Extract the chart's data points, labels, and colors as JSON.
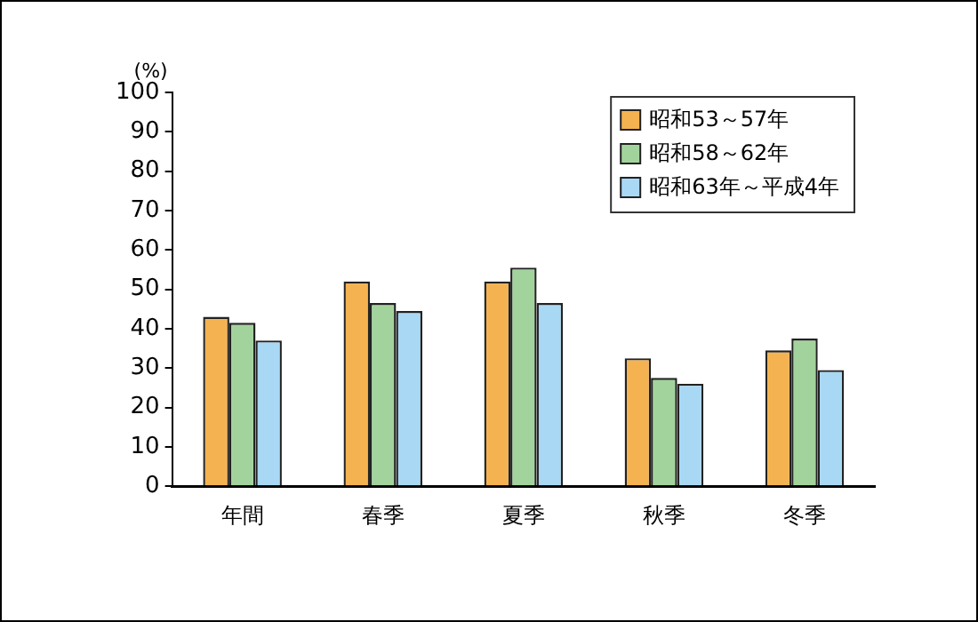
{
  "chart_data": {
    "type": "bar",
    "ylabel": "(%)",
    "categories": [
      "年間",
      "春季",
      "夏季",
      "秋季",
      "冬季"
    ],
    "series": [
      {
        "name": "昭和53～57年",
        "color": "#f4b350",
        "values": [
          43,
          52,
          52,
          32.5,
          34.5
        ]
      },
      {
        "name": "昭和58～62年",
        "color": "#a3d39c",
        "values": [
          41.5,
          46.5,
          55.5,
          27.5,
          37.5
        ]
      },
      {
        "name": "昭和63年～平成4年",
        "color": "#a8d8f4",
        "values": [
          37,
          44.5,
          46.5,
          26,
          29.5
        ]
      }
    ],
    "ylim": [
      0,
      100
    ],
    "yticks": [
      0,
      10,
      20,
      30,
      40,
      50,
      60,
      70,
      80,
      90,
      100
    ],
    "legend": "top right"
  }
}
